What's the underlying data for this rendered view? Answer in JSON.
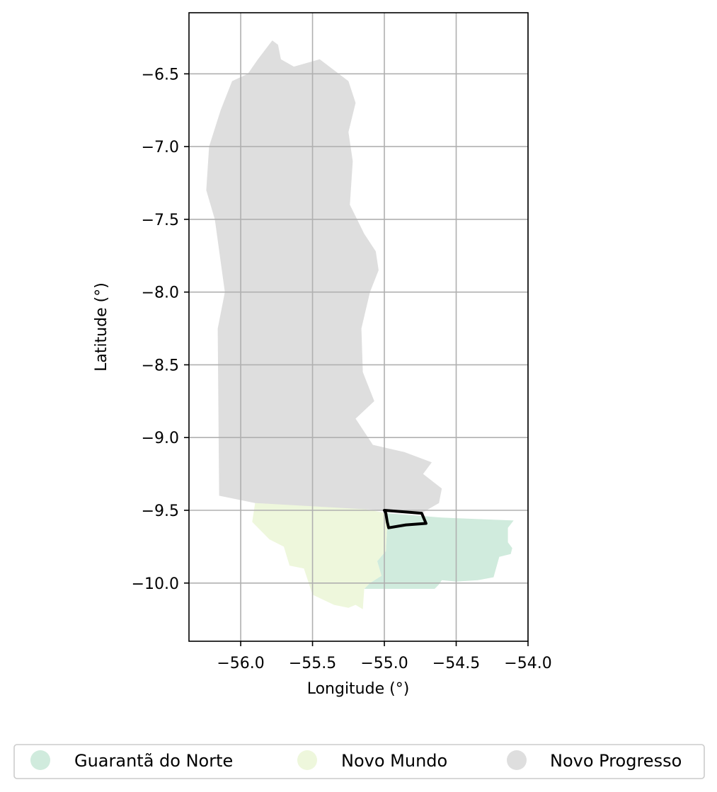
{
  "chart_data": {
    "type": "map",
    "xlabel": "Longitude (°)",
    "ylabel": "Latitude (°)",
    "xlim": [
      -56.36,
      -54.0
    ],
    "ylim": [
      -10.4,
      -6.08
    ],
    "xticks": [
      -56.0,
      -55.5,
      -55.0,
      -54.5,
      -54.0
    ],
    "yticks": [
      -6.5,
      -7.0,
      -7.5,
      -8.0,
      -8.5,
      -9.0,
      -9.5,
      -10.0
    ],
    "xtick_labels": [
      "−56.0",
      "−55.5",
      "−55.0",
      "−54.5",
      "−54.0"
    ],
    "ytick_labels": [
      "−6.5",
      "−7.0",
      "−7.5",
      "−8.0",
      "−8.5",
      "−9.0",
      "−9.5",
      "−10.0"
    ],
    "grid": true,
    "legend_position": "bottom",
    "regions": [
      {
        "name": "Guarantã do Norte",
        "color": "#d0ebdd",
        "outline": [
          [
            -54.98,
            -9.52
          ],
          [
            -54.6,
            -9.55
          ],
          [
            -54.1,
            -9.57
          ],
          [
            -54.14,
            -9.62
          ],
          [
            -54.14,
            -9.72
          ],
          [
            -54.11,
            -9.76
          ],
          [
            -54.12,
            -9.8
          ],
          [
            -54.2,
            -9.82
          ],
          [
            -54.24,
            -9.96
          ],
          [
            -54.35,
            -9.98
          ],
          [
            -54.5,
            -9.99
          ],
          [
            -54.6,
            -9.98
          ],
          [
            -54.62,
            -10.01
          ],
          [
            -54.65,
            -10.04
          ],
          [
            -55.14,
            -10.04
          ],
          [
            -55.1,
            -10.0
          ],
          [
            -55.02,
            -9.95
          ],
          [
            -55.05,
            -9.85
          ],
          [
            -54.99,
            -9.78
          ],
          [
            -54.98,
            -9.6
          ]
        ]
      },
      {
        "name": "Novo Mundo",
        "color": "#eef7dc",
        "outline": [
          [
            -55.9,
            -9.45
          ],
          [
            -55.2,
            -9.48
          ],
          [
            -54.98,
            -9.52
          ],
          [
            -54.98,
            -9.6
          ],
          [
            -54.99,
            -9.78
          ],
          [
            -55.05,
            -9.85
          ],
          [
            -55.02,
            -9.95
          ],
          [
            -55.1,
            -10.0
          ],
          [
            -55.14,
            -10.04
          ],
          [
            -55.15,
            -10.18
          ],
          [
            -55.2,
            -10.15
          ],
          [
            -55.25,
            -10.17
          ],
          [
            -55.35,
            -10.15
          ],
          [
            -55.5,
            -10.08
          ],
          [
            -55.56,
            -9.9
          ],
          [
            -55.66,
            -9.88
          ],
          [
            -55.7,
            -9.75
          ],
          [
            -55.8,
            -9.7
          ],
          [
            -55.92,
            -9.58
          ]
        ]
      },
      {
        "name": "Novo Progresso",
        "color": "#dedede",
        "outline": [
          [
            -55.78,
            -6.27
          ],
          [
            -55.74,
            -6.3
          ],
          [
            -55.72,
            -6.4
          ],
          [
            -55.63,
            -6.45
          ],
          [
            -55.45,
            -6.4
          ],
          [
            -55.25,
            -6.55
          ],
          [
            -55.2,
            -6.7
          ],
          [
            -55.25,
            -6.9
          ],
          [
            -55.22,
            -7.1
          ],
          [
            -55.24,
            -7.4
          ],
          [
            -55.14,
            -7.6
          ],
          [
            -55.06,
            -7.72
          ],
          [
            -55.04,
            -7.85
          ],
          [
            -55.1,
            -8.0
          ],
          [
            -55.16,
            -8.25
          ],
          [
            -55.15,
            -8.55
          ],
          [
            -55.07,
            -8.75
          ],
          [
            -55.2,
            -8.87
          ],
          [
            -55.08,
            -9.05
          ],
          [
            -54.86,
            -9.1
          ],
          [
            -54.67,
            -9.17
          ],
          [
            -54.73,
            -9.25
          ],
          [
            -54.6,
            -9.35
          ],
          [
            -54.62,
            -9.45
          ],
          [
            -54.76,
            -9.53
          ],
          [
            -55.0,
            -9.5
          ],
          [
            -55.9,
            -9.45
          ],
          [
            -56.15,
            -9.4
          ],
          [
            -56.16,
            -8.25
          ],
          [
            -56.11,
            -8.0
          ],
          [
            -56.18,
            -7.5
          ],
          [
            -56.24,
            -7.3
          ],
          [
            -56.22,
            -7.0
          ],
          [
            -56.14,
            -6.75
          ],
          [
            -56.06,
            -6.55
          ],
          [
            -55.95,
            -6.5
          ],
          [
            -55.88,
            -6.4
          ]
        ]
      }
    ],
    "highlight_outline": {
      "color": "#000000",
      "points": [
        [
          -55.0,
          -9.5
        ],
        [
          -54.74,
          -9.52
        ],
        [
          -54.71,
          -9.59
        ],
        [
          -54.85,
          -9.6
        ],
        [
          -54.97,
          -9.62
        ],
        [
          -54.98,
          -9.58
        ],
        [
          -54.99,
          -9.52
        ]
      ]
    }
  },
  "legend": {
    "items": [
      {
        "label": "Guarantã do Norte",
        "color": "#d0ebdd"
      },
      {
        "label": "Novo Mundo",
        "color": "#eef7dc"
      },
      {
        "label": "Novo Progresso",
        "color": "#dedede"
      }
    ]
  }
}
